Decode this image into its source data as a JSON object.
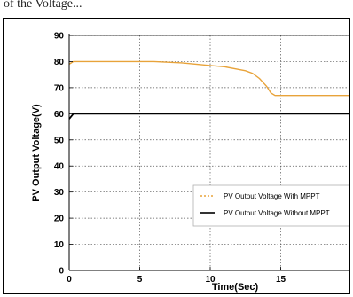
{
  "caption_fragment": "of the Voltage...",
  "chart_data": {
    "type": "line",
    "title": "",
    "xlabel": "Time(Sec)",
    "ylabel": "PV Output Voltage(V)",
    "xlim": [
      0,
      20
    ],
    "ylim": [
      0,
      90
    ],
    "x_ticks": [
      0,
      5,
      10,
      15
    ],
    "y_ticks": [
      0,
      10,
      20,
      30,
      40,
      50,
      60,
      70,
      80,
      90
    ],
    "grid": true,
    "legend_placement": "lower-right",
    "series": [
      {
        "name": "PV Output Voltage With MPPT",
        "color": "#e8a33a",
        "style": "dashed",
        "x": [
          0,
          0.3,
          1,
          2,
          4,
          6,
          8,
          10,
          11,
          12,
          12.5,
          13,
          13.5,
          14,
          14.3,
          14.6,
          15,
          16,
          17,
          18,
          19,
          20
        ],
        "y": [
          79,
          80,
          80,
          80,
          80,
          80,
          79.5,
          78.5,
          78,
          77,
          76.5,
          75.5,
          73.5,
          70.5,
          68,
          67,
          67,
          67,
          67,
          67,
          67,
          67
        ]
      },
      {
        "name": "PV Output Voltage Without MPPT",
        "color": "#000000",
        "style": "solid",
        "x": [
          0,
          0.3,
          1,
          5,
          10,
          15,
          20
        ],
        "y": [
          58,
          60,
          60,
          60,
          60,
          60,
          60
        ]
      }
    ]
  }
}
